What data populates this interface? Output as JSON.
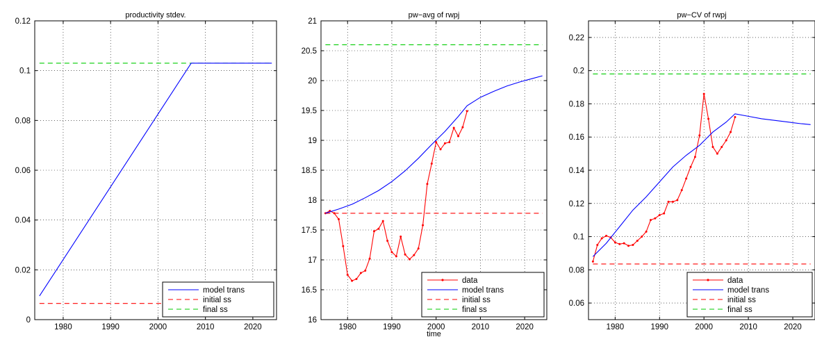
{
  "colors": {
    "model": "#0000ff",
    "data": "#ff0000",
    "initial": "#ff0000",
    "final": "#00cc00"
  },
  "chart_data": [
    {
      "type": "line",
      "title": "productivity stdev.",
      "xlabel": "",
      "ylabel": "",
      "xlim": [
        1974,
        2025
      ],
      "ylim": [
        0,
        0.12
      ],
      "xticks": [
        1980,
        1990,
        2000,
        2010,
        2020
      ],
      "yticks": [
        0,
        0.02,
        0.04,
        0.06,
        0.08,
        0.1,
        0.12
      ],
      "ytick_labels": [
        "0",
        "0.02",
        "0.04",
        "0.06",
        "0.08",
        "0.1",
        "0.12"
      ],
      "grid": true,
      "legend": "bottom-right",
      "legend_entries": [
        "model trans",
        "initial ss",
        "final ss"
      ],
      "series": [
        {
          "name": "model trans",
          "style": "solid",
          "color": "#0000ff",
          "x": [
            1975,
            2007,
            2024
          ],
          "y": [
            0.0095,
            0.103,
            0.103
          ]
        },
        {
          "name": "initial ss",
          "style": "dashed",
          "color": "#ff0000",
          "x": [
            1975,
            2024
          ],
          "y": [
            0.0065,
            0.0065
          ]
        },
        {
          "name": "final ss",
          "style": "dashed",
          "color": "#00cc00",
          "x": [
            1975,
            2024
          ],
          "y": [
            0.103,
            0.103
          ]
        }
      ]
    },
    {
      "type": "line",
      "title": "pw−avg of rwpj",
      "xlabel": "time",
      "ylabel": "",
      "xlim": [
        1974,
        2025
      ],
      "ylim": [
        16,
        21
      ],
      "xticks": [
        1980,
        1990,
        2000,
        2010,
        2020
      ],
      "yticks": [
        16,
        16.5,
        17,
        17.5,
        18,
        18.5,
        19,
        19.5,
        20,
        20.5,
        21
      ],
      "ytick_labels": [
        "16",
        "16.5",
        "17",
        "17.5",
        "18",
        "18.5",
        "19",
        "19.5",
        "20",
        "20.5",
        "21"
      ],
      "grid": true,
      "legend": "bottom-right",
      "legend_entries": [
        "data",
        "model trans",
        "initial ss",
        "final ss"
      ],
      "series": [
        {
          "name": "data",
          "style": "solid-markers",
          "color": "#ff0000",
          "x": [
            1975,
            1976,
            1977,
            1978,
            1979,
            1980,
            1981,
            1982,
            1983,
            1984,
            1985,
            1986,
            1987,
            1988,
            1989,
            1990,
            1991,
            1992,
            1993,
            1994,
            1995,
            1996,
            1997,
            1998,
            1999,
            2000,
            2001,
            2002,
            2003,
            2004,
            2005,
            2006,
            2007
          ],
          "y": [
            17.78,
            17.82,
            17.78,
            17.68,
            17.23,
            16.75,
            16.65,
            16.68,
            16.78,
            16.82,
            17.02,
            17.48,
            17.52,
            17.65,
            17.32,
            17.13,
            17.06,
            17.39,
            17.09,
            17.01,
            17.08,
            17.19,
            17.58,
            18.27,
            18.61,
            18.97,
            18.85,
            18.95,
            18.97,
            19.21,
            19.07,
            19.22,
            19.49
          ]
        },
        {
          "name": "model trans",
          "style": "solid",
          "color": "#0000ff",
          "x": [
            1975,
            1978,
            1981,
            1984,
            1987,
            1990,
            1993,
            1996,
            1999,
            2002,
            2005,
            2007,
            2010,
            2013,
            2016,
            2019,
            2022,
            2024
          ],
          "y": [
            17.78,
            17.85,
            17.93,
            18.04,
            18.16,
            18.31,
            18.49,
            18.7,
            18.93,
            19.15,
            19.4,
            19.58,
            19.72,
            19.82,
            19.91,
            19.98,
            20.04,
            20.08
          ]
        },
        {
          "name": "initial ss",
          "style": "dashed",
          "color": "#ff0000",
          "x": [
            1975,
            2024
          ],
          "y": [
            17.78,
            17.78
          ]
        },
        {
          "name": "final ss",
          "style": "dashed",
          "color": "#00cc00",
          "x": [
            1975,
            2024
          ],
          "y": [
            20.6,
            20.6
          ]
        }
      ]
    },
    {
      "type": "line",
      "title": "pw−CV of rwpj",
      "xlabel": "",
      "ylabel": "",
      "xlim": [
        1974,
        2025
      ],
      "ylim": [
        0.05,
        0.23
      ],
      "xticks": [
        1980,
        1990,
        2000,
        2010,
        2020
      ],
      "yticks": [
        0.06,
        0.08,
        0.1,
        0.12,
        0.14,
        0.16,
        0.18,
        0.2,
        0.22
      ],
      "ytick_labels": [
        "0.06",
        "0.08",
        "0.1",
        "0.12",
        "0.14",
        "0.16",
        "0.18",
        "0.2",
        "0.22"
      ],
      "grid": true,
      "legend": "bottom-right",
      "legend_entries": [
        "data",
        "model trans",
        "initial ss",
        "final ss"
      ],
      "series": [
        {
          "name": "data",
          "style": "solid-markers",
          "color": "#ff0000",
          "x": [
            1975,
            1976,
            1977,
            1978,
            1979,
            1980,
            1981,
            1982,
            1983,
            1984,
            1985,
            1986,
            1987,
            1988,
            1989,
            1990,
            1991,
            1992,
            1993,
            1994,
            1995,
            1996,
            1997,
            1998,
            1999,
            2000,
            2001,
            2002,
            2003,
            2004,
            2005,
            2006,
            2007
          ],
          "y": [
            0.085,
            0.095,
            0.099,
            0.1005,
            0.0995,
            0.0965,
            0.0955,
            0.096,
            0.0945,
            0.095,
            0.0975,
            0.1,
            0.103,
            0.11,
            0.111,
            0.113,
            0.114,
            0.121,
            0.121,
            0.122,
            0.128,
            0.135,
            0.142,
            0.148,
            0.161,
            0.186,
            0.171,
            0.154,
            0.15,
            0.154,
            0.158,
            0.163,
            0.172
          ]
        },
        {
          "name": "model trans",
          "style": "solid",
          "color": "#0000ff",
          "x": [
            1975,
            1978,
            1981,
            1984,
            1987,
            1990,
            1993,
            1996,
            1999,
            2002,
            2005,
            2007,
            2010,
            2013,
            2016,
            2019,
            2022,
            2024
          ],
          "y": [
            0.088,
            0.096,
            0.106,
            0.116,
            0.124,
            0.133,
            0.142,
            0.149,
            0.155,
            0.163,
            0.169,
            0.174,
            0.1725,
            0.171,
            0.17,
            0.169,
            0.168,
            0.1675
          ]
        },
        {
          "name": "initial ss",
          "style": "dashed",
          "color": "#ff0000",
          "x": [
            1975,
            2024
          ],
          "y": [
            0.0835,
            0.0835
          ]
        },
        {
          "name": "final ss",
          "style": "dashed",
          "color": "#00cc00",
          "x": [
            1975,
            2024
          ],
          "y": [
            0.198,
            0.198
          ]
        }
      ]
    }
  ]
}
